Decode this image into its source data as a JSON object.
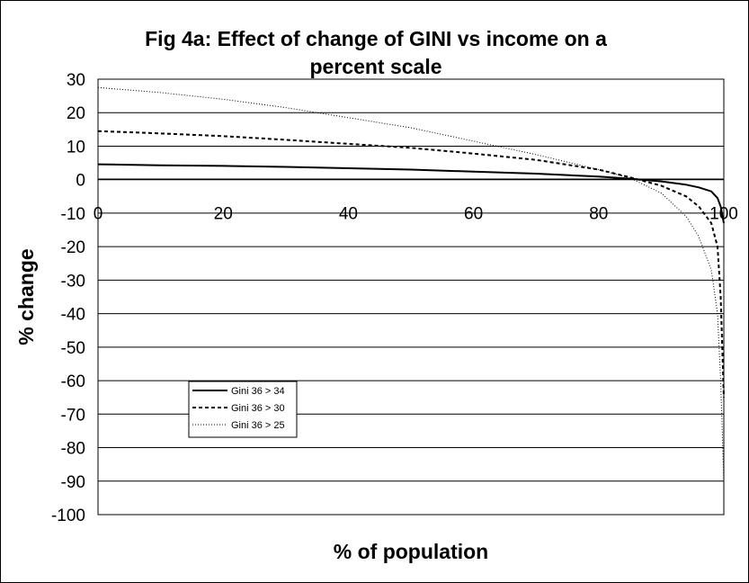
{
  "chart_data": {
    "type": "line",
    "title_lines": [
      "Fig 4a: Effect of change of GINI vs income on a",
      "percent scale"
    ],
    "xlabel": "% of population",
    "ylabel": "% change",
    "xlim": [
      0,
      100
    ],
    "ylim": [
      -100,
      30
    ],
    "x_ticks": [
      "0",
      "20",
      "40",
      "60",
      "80",
      "100"
    ],
    "y_ticks": [
      "30",
      "20",
      "10",
      "0",
      "-10",
      "-20",
      "-30",
      "-40",
      "-50",
      "-60",
      "-70",
      "-80",
      "-90",
      "-100"
    ],
    "grid": "horizontal",
    "legend_position": "lower-left inside plot",
    "series": [
      {
        "name": "Gini 36 > 34",
        "style": "solid",
        "x": [
          0,
          10,
          20,
          30,
          40,
          50,
          60,
          70,
          80,
          85,
          90,
          94,
          96,
          98,
          99,
          99.5,
          100
        ],
        "y": [
          4.6,
          4.3,
          4.1,
          3.8,
          3.4,
          3.0,
          2.4,
          1.8,
          0.9,
          0.3,
          -0.5,
          -1.5,
          -2.3,
          -3.5,
          -5.5,
          -8,
          -13
        ]
      },
      {
        "name": "Gini 36 > 30",
        "style": "dashed",
        "x": [
          0,
          10,
          20,
          30,
          40,
          50,
          60,
          70,
          80,
          85,
          90,
          94,
          96,
          98,
          99,
          99.5,
          100
        ],
        "y": [
          14.5,
          13.8,
          13.0,
          11.9,
          10.7,
          9.5,
          7.8,
          5.9,
          3.0,
          0.7,
          -1.8,
          -5,
          -8,
          -13,
          -20,
          -35,
          -65
        ]
      },
      {
        "name": "Gini 36 > 25",
        "style": "dotted",
        "x": [
          0,
          10,
          20,
          30,
          40,
          50,
          60,
          70,
          80,
          85,
          90,
          94,
          96,
          98,
          99,
          99.5,
          100
        ],
        "y": [
          27.5,
          26,
          24,
          21.5,
          18.5,
          15.5,
          11.5,
          7.5,
          3.0,
          0.5,
          -4,
          -11,
          -17,
          -27,
          -40,
          -60,
          -90
        ]
      }
    ]
  },
  "colors": {
    "background": "#ffffff",
    "line": "#000000",
    "grid": "#000000"
  }
}
